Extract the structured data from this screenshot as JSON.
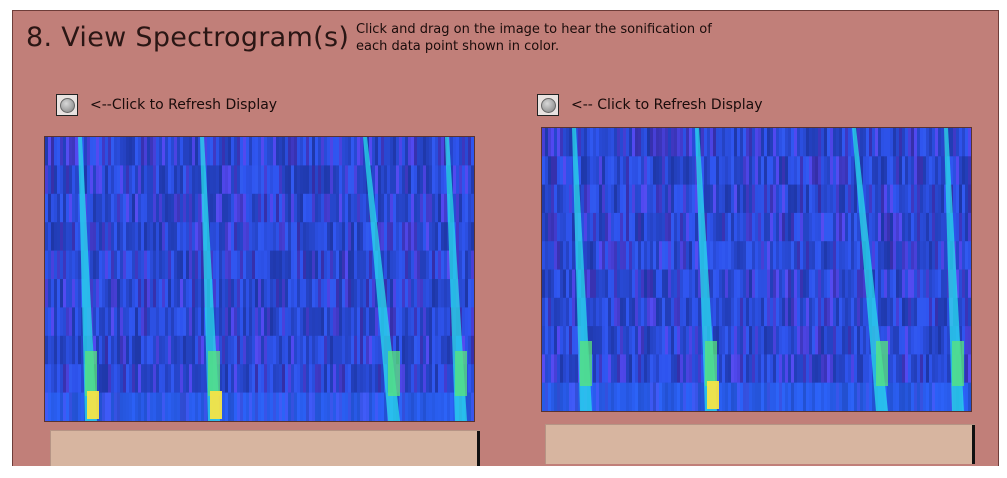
{
  "section": {
    "title": "8. View Spectrogram(s)",
    "instructions": "Click and drag on the image to hear the sonification of each data point shown in color."
  },
  "panels": [
    {
      "refresh_label": "<--Click to Refresh Display"
    },
    {
      "refresh_label": "<-- Click to Refresh Display"
    }
  ],
  "colors": {
    "panel_background": "#c17f79",
    "readout_background": "#d7b5a0",
    "spectrogram_base": "#3d5fe0",
    "spectrogram_peak": "#26d9e6",
    "spectrogram_hot": "#f4e34a"
  }
}
